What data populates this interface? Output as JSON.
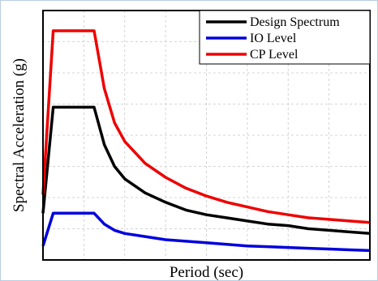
{
  "chart_data": {
    "type": "line",
    "title": "",
    "xlabel": "Period (sec)",
    "ylabel": "Spectral Acceleration (g)",
    "xlim": [
      0,
      8
    ],
    "ylim": [
      0,
      1.6
    ],
    "x_ticks_labeled": false,
    "y_ticks_labeled": false,
    "grid": true,
    "legend_position": "top-right",
    "x": [
      0.0,
      0.25,
      0.5,
      0.75,
      1.0,
      1.25,
      1.5,
      1.75,
      2.0,
      2.5,
      3.0,
      3.5,
      4.0,
      4.5,
      5.0,
      5.5,
      6.0,
      6.5,
      7.0,
      7.5,
      8.0
    ],
    "series": [
      {
        "name": "Design Spectrum",
        "color": "#000000",
        "values": [
          0.3,
          0.98,
          0.98,
          0.98,
          0.98,
          0.98,
          0.74,
          0.6,
          0.52,
          0.43,
          0.37,
          0.32,
          0.29,
          0.27,
          0.25,
          0.23,
          0.22,
          0.2,
          0.19,
          0.18,
          0.17
        ]
      },
      {
        "name": "IO Level",
        "color": "#0000dd",
        "values": [
          0.09,
          0.3,
          0.3,
          0.3,
          0.3,
          0.3,
          0.23,
          0.19,
          0.17,
          0.15,
          0.13,
          0.12,
          0.11,
          0.1,
          0.09,
          0.085,
          0.08,
          0.075,
          0.07,
          0.065,
          0.06
        ]
      },
      {
        "name": "CP Level",
        "color": "#ee0000",
        "values": [
          0.42,
          1.47,
          1.47,
          1.47,
          1.47,
          1.47,
          1.1,
          0.88,
          0.76,
          0.62,
          0.53,
          0.46,
          0.41,
          0.37,
          0.34,
          0.31,
          0.29,
          0.27,
          0.26,
          0.25,
          0.24
        ]
      }
    ]
  }
}
